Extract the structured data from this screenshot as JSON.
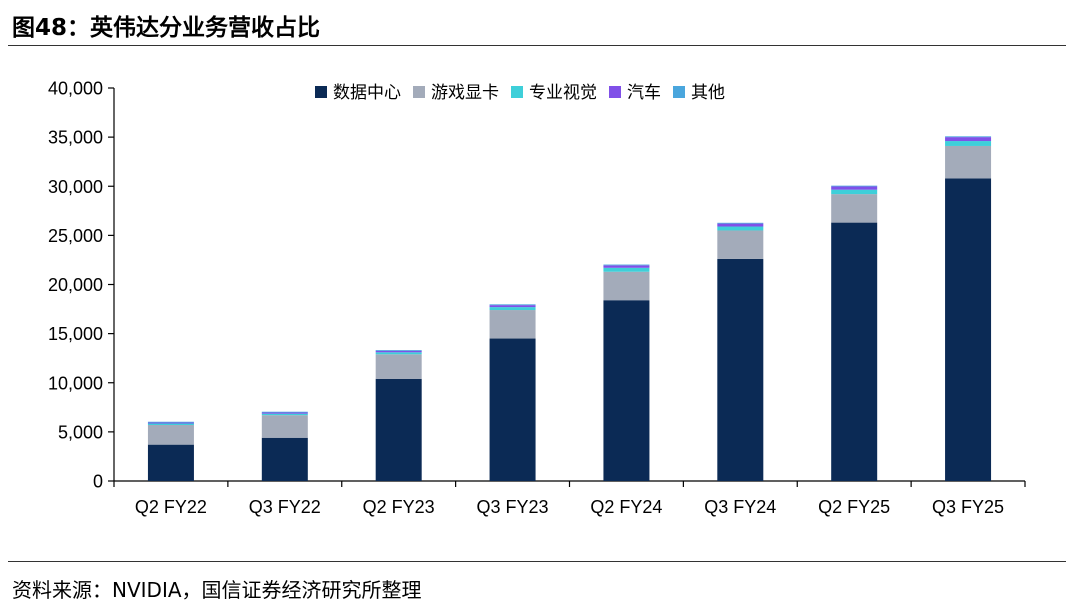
{
  "figure_title": "图48：英伟达分业务营收占比",
  "source_note": "资料来源：NVIDIA，国信证券经济研究所整理",
  "chart_data": {
    "type": "bar",
    "stacked": true,
    "categories": [
      "Q2 FY22",
      "Q3 FY22",
      "Q2 FY23",
      "Q3 FY23",
      "Q2 FY24",
      "Q3 FY24",
      "Q2 FY25",
      "Q3 FY25"
    ],
    "series": [
      {
        "name": "数据中心",
        "color": "#0b2a55",
        "values": [
          3700,
          4400,
          10400,
          14500,
          18400,
          22600,
          26300,
          30800
        ]
      },
      {
        "name": "游戏显卡",
        "color": "#a3abba",
        "values": [
          2000,
          2300,
          2500,
          2900,
          2900,
          2900,
          2900,
          3300
        ]
      },
      {
        "name": "专业视觉",
        "color": "#3ecfd9",
        "values": [
          150,
          150,
          200,
          300,
          400,
          400,
          450,
          500
        ]
      },
      {
        "name": "汽车",
        "color": "#8050e8",
        "values": [
          100,
          120,
          150,
          200,
          250,
          300,
          330,
          400
        ]
      },
      {
        "name": "其他",
        "color": "#4aa6dd",
        "values": [
          80,
          80,
          80,
          80,
          80,
          80,
          80,
          80
        ]
      }
    ],
    "yticks": [
      "0",
      "5,000",
      "10,000",
      "15,000",
      "20,000",
      "25,000",
      "30,000",
      "35,000",
      "40,000"
    ],
    "ylim": [
      0,
      40000
    ],
    "grid": false,
    "legend_position": "top-center"
  }
}
